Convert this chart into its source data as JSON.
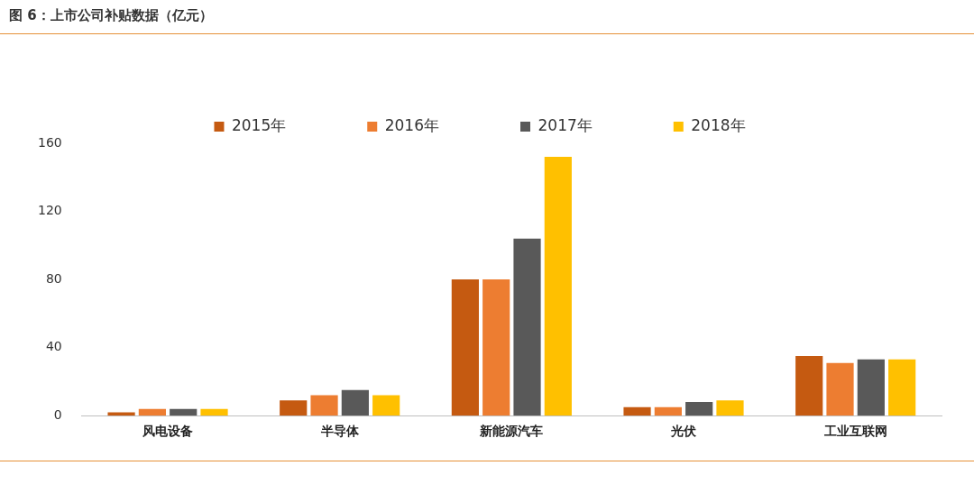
{
  "chart_data": {
    "type": "bar",
    "title": "图 6：上市公司补贴数据（亿元）",
    "categories": [
      "风电设备",
      "半导体",
      "新能源汽车",
      "光伏",
      "工业互联网"
    ],
    "series": [
      {
        "name": "2015年",
        "color": "#c55a11",
        "values": [
          2,
          9,
          80,
          5,
          35
        ]
      },
      {
        "name": "2016年",
        "color": "#ed7d31",
        "values": [
          4,
          12,
          80,
          5,
          31
        ]
      },
      {
        "name": "2017年",
        "color": "#595959",
        "values": [
          4,
          15,
          104,
          8,
          33
        ]
      },
      {
        "name": "2018年",
        "color": "#ffc000",
        "values": [
          4,
          12,
          152,
          9,
          33
        ]
      }
    ],
    "ylim": [
      0,
      160
    ],
    "yticks": [
      0,
      40,
      80,
      120,
      160
    ],
    "grid": false,
    "legend": "top"
  }
}
